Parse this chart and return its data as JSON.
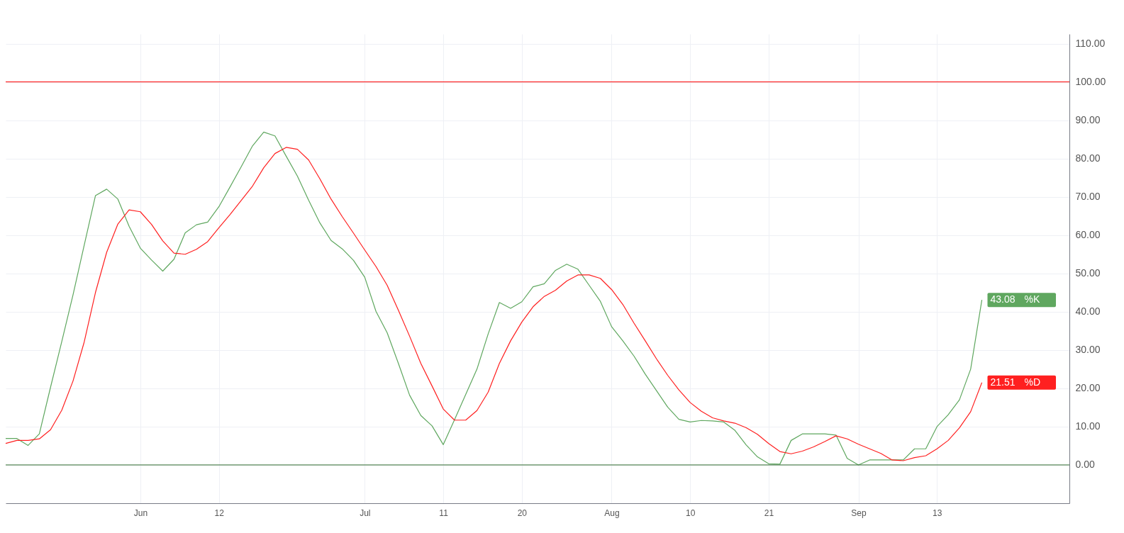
{
  "chart_data": {
    "type": "line",
    "categories": [
      null,
      null,
      null,
      null,
      null,
      null,
      null,
      null,
      null,
      null,
      null,
      null,
      "Jun",
      null,
      null,
      null,
      null,
      null,
      null,
      "12",
      null,
      null,
      null,
      null,
      null,
      null,
      null,
      null,
      null,
      null,
      null,
      null,
      "Jul",
      null,
      null,
      null,
      null,
      null,
      null,
      "11",
      null,
      null,
      null,
      null,
      null,
      null,
      "20",
      null,
      null,
      null,
      null,
      null,
      null,
      null,
      "Aug",
      null,
      null,
      null,
      null,
      null,
      null,
      "10",
      null,
      null,
      null,
      null,
      null,
      null,
      "21",
      null,
      null,
      null,
      null,
      null,
      null,
      null,
      "Sep",
      null,
      null,
      null,
      null,
      null,
      null,
      "13",
      null,
      null,
      null,
      null
    ],
    "series": [
      {
        "name": "%K",
        "color": "#5fa75f",
        "values": [
          6.9,
          6.9,
          5.1,
          8.1,
          20.3,
          32.2,
          44.4,
          57.4,
          70.3,
          72.0,
          69.4,
          62.3,
          56.6,
          53.5,
          50.6,
          53.7,
          60.6,
          62.7,
          63.4,
          67.4,
          72.6,
          77.9,
          83.3,
          86.9,
          85.9,
          80.6,
          75.4,
          69.1,
          63.2,
          58.6,
          56.4,
          53.4,
          49.0,
          40.1,
          34.5,
          26.5,
          18.2,
          12.9,
          10.2,
          5.3,
          11.8,
          18.4,
          25.0,
          34.2,
          42.4,
          40.9,
          42.6,
          46.5,
          47.3,
          50.8,
          52.4,
          51.1,
          46.9,
          42.7,
          36.1,
          32.4,
          28.4,
          23.7,
          19.4,
          15.1,
          11.9,
          11.2,
          11.6,
          11.5,
          11.2,
          9.0,
          5.2,
          2.1,
          0.3,
          0.2,
          6.4,
          8.1,
          8.1,
          8.1,
          7.8,
          1.7,
          0.0,
          1.3,
          1.3,
          1.3,
          1.3,
          4.2,
          4.2,
          10.0,
          13.1,
          17.0,
          25.0,
          43.08
        ],
        "value_labels": [
          null,
          null,
          null,
          null,
          null,
          null,
          null,
          null,
          null,
          null,
          null,
          null,
          null,
          null,
          null,
          null,
          null,
          null,
          null,
          null,
          null,
          null,
          null,
          null,
          null,
          null,
          null,
          null,
          null,
          null,
          null,
          null,
          null,
          null,
          null,
          null,
          null,
          null,
          null,
          null,
          null,
          null,
          null,
          null,
          null,
          null,
          null,
          null,
          null,
          null,
          null,
          null,
          null,
          null,
          null,
          null,
          null,
          null,
          null,
          null,
          null,
          null,
          null,
          null,
          null,
          null,
          null,
          null,
          null,
          null,
          null,
          null,
          null,
          null,
          null,
          null,
          null,
          null,
          null,
          null,
          null,
          null,
          null,
          null,
          null,
          null,
          null,
          "43.08"
        ]
      },
      {
        "name": "%D",
        "color": "#ff2020",
        "values": [
          5.6,
          6.4,
          6.4,
          6.8,
          9.2,
          14.3,
          21.9,
          32.1,
          45.0,
          55.5,
          62.9,
          66.6,
          66.1,
          62.8,
          58.5,
          55.3,
          55.0,
          56.3,
          58.3,
          61.9,
          65.4,
          69.1,
          72.8,
          77.6,
          81.3,
          82.9,
          82.4,
          79.6,
          74.7,
          69.4,
          64.8,
          60.5,
          56.1,
          51.8,
          46.9,
          40.4,
          33.6,
          26.5,
          20.6,
          14.6,
          11.7,
          11.7,
          14.2,
          19.0,
          26.5,
          32.4,
          37.3,
          41.3,
          44.0,
          45.6,
          48.0,
          49.6,
          49.6,
          48.7,
          45.8,
          41.9,
          37.0,
          32.4,
          27.7,
          23.4,
          19.6,
          16.3,
          14.0,
          12.3,
          11.5,
          10.9,
          9.7,
          8.0,
          5.6,
          3.5,
          2.9,
          3.6,
          4.7,
          6.1,
          7.6,
          6.8,
          5.4,
          4.2,
          3.0,
          1.3,
          1.1,
          1.9,
          2.4,
          4.2,
          6.4,
          9.7,
          13.9,
          21.51
        ],
        "value_labels": [
          null,
          null,
          null,
          null,
          null,
          null,
          null,
          null,
          null,
          null,
          null,
          null,
          null,
          null,
          null,
          null,
          null,
          null,
          null,
          null,
          null,
          null,
          null,
          null,
          null,
          null,
          null,
          null,
          null,
          null,
          null,
          null,
          null,
          null,
          null,
          null,
          null,
          null,
          null,
          null,
          null,
          null,
          null,
          null,
          null,
          null,
          null,
          null,
          null,
          null,
          null,
          null,
          null,
          null,
          null,
          null,
          null,
          null,
          null,
          null,
          null,
          null,
          null,
          null,
          null,
          null,
          null,
          null,
          null,
          null,
          null,
          null,
          null,
          null,
          null,
          null,
          null,
          null,
          null,
          null,
          null,
          null,
          null,
          null,
          null,
          null,
          null,
          "21.51"
        ]
      }
    ],
    "ylim": [
      -10,
      112.5
    ],
    "yticks": [
      {
        "value": 0,
        "label": "0.00"
      },
      {
        "value": 10,
        "label": "10.00"
      },
      {
        "value": 20,
        "label": "20.00"
      },
      {
        "value": 30,
        "label": "30.00"
      },
      {
        "value": 40,
        "label": "40.00"
      },
      {
        "value": 50,
        "label": "50.00"
      },
      {
        "value": 60,
        "label": "60.00"
      },
      {
        "value": 70,
        "label": "70.00"
      },
      {
        "value": 80,
        "label": "80.00"
      },
      {
        "value": 90,
        "label": "90.00"
      },
      {
        "value": 100,
        "label": "100.00"
      },
      {
        "value": 110,
        "label": "110.00"
      }
    ],
    "ref_lines": [
      {
        "axis": "y",
        "value": 100,
        "color": "#ff0000"
      },
      {
        "axis": "y",
        "value": 0,
        "color": "#2e6b2e"
      }
    ],
    "grid": true,
    "line_style": "solid"
  }
}
